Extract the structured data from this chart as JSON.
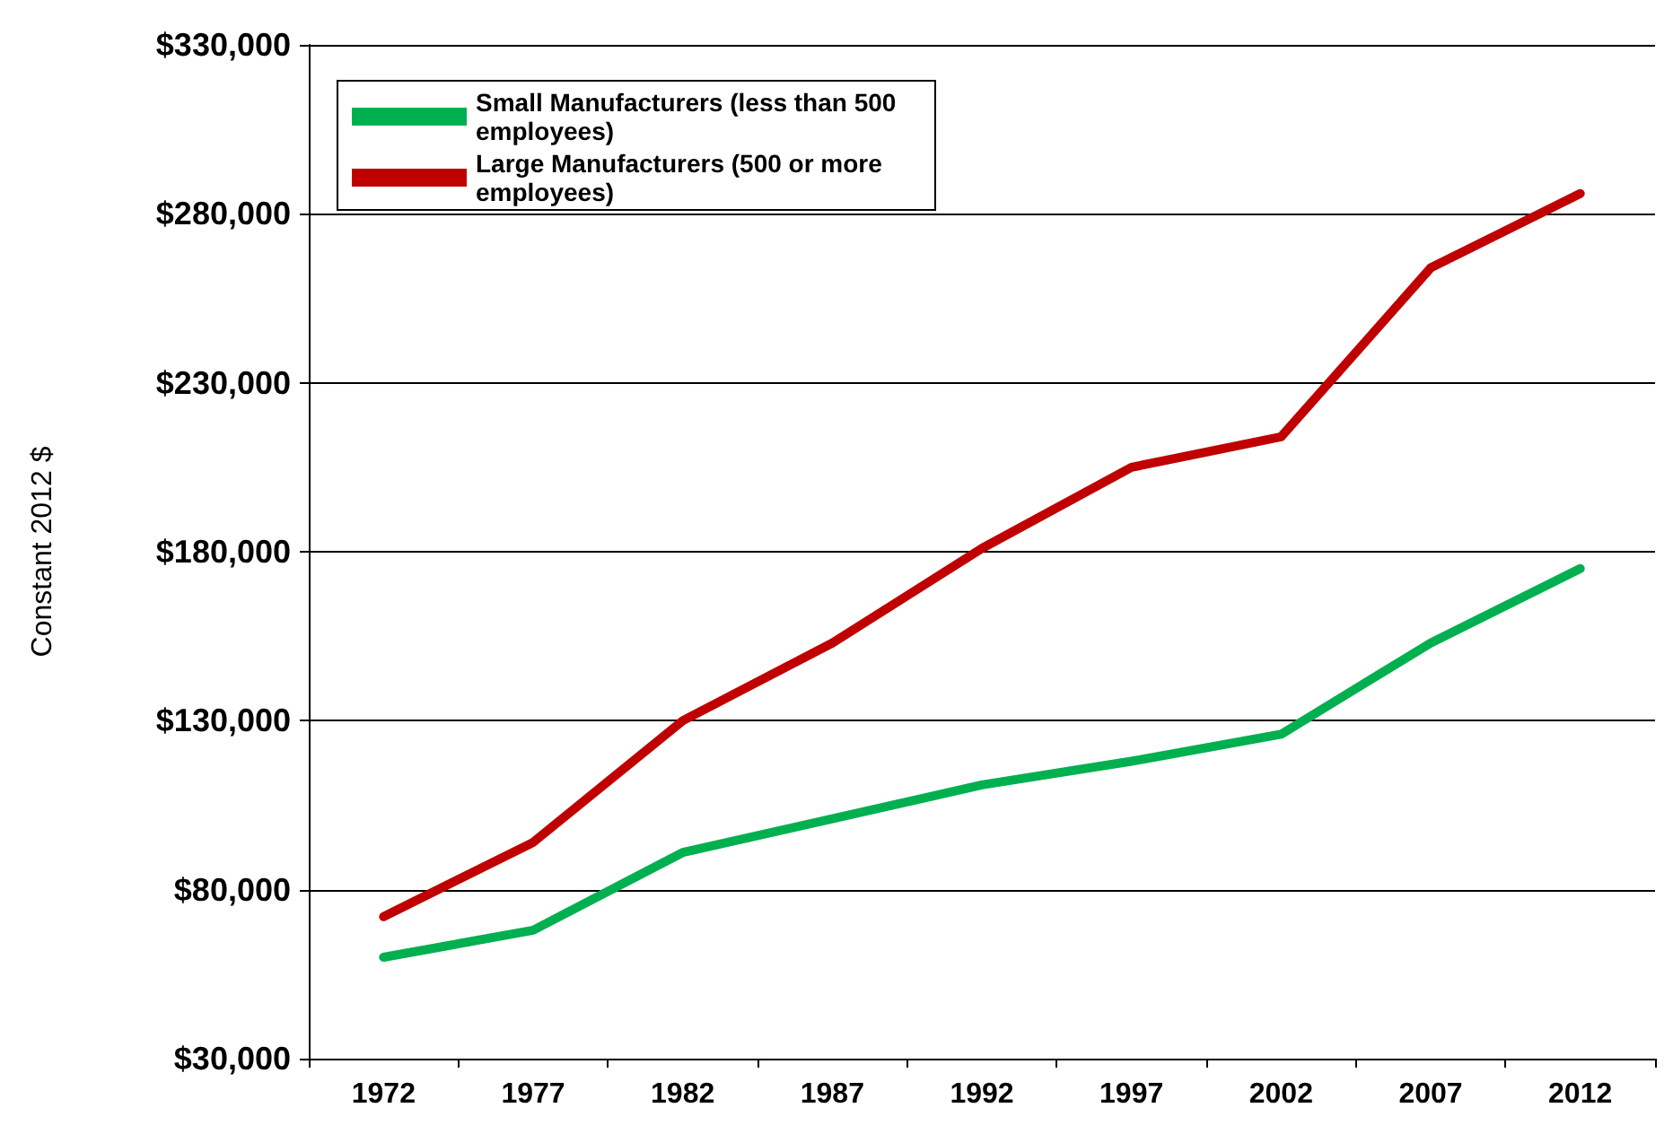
{
  "chart_data": {
    "type": "line",
    "ylabel": "Constant 2012 $",
    "categories": [
      "1972",
      "1977",
      "1982",
      "1987",
      "1992",
      "1997",
      "2002",
      "2007",
      "2012"
    ],
    "series": [
      {
        "name": "Small Manufacturers (less than 500 employees)",
        "color": "#00b050",
        "values": [
          60000,
          68000,
          91000,
          101000,
          111000,
          118000,
          126000,
          153000,
          175000
        ]
      },
      {
        "name": "Large Manufacturers (500 or more employees)",
        "color": "#c00000",
        "values": [
          72000,
          94000,
          130000,
          153000,
          181000,
          205000,
          214000,
          264000,
          286000
        ]
      }
    ],
    "ylim": [
      30000,
      330000
    ],
    "yticks": [
      {
        "value": 30000,
        "label": "$30,000"
      },
      {
        "value": 80000,
        "label": "$80,000"
      },
      {
        "value": 130000,
        "label": "$130,000"
      },
      {
        "value": 180000,
        "label": "$180,000"
      },
      {
        "value": 230000,
        "label": "$230,000"
      },
      {
        "value": 280000,
        "label": "$280,000"
      },
      {
        "value": 330000,
        "label": "$330,000"
      }
    ],
    "grid": "y",
    "legend": "top left",
    "marker": "none",
    "line_style": "solid"
  }
}
